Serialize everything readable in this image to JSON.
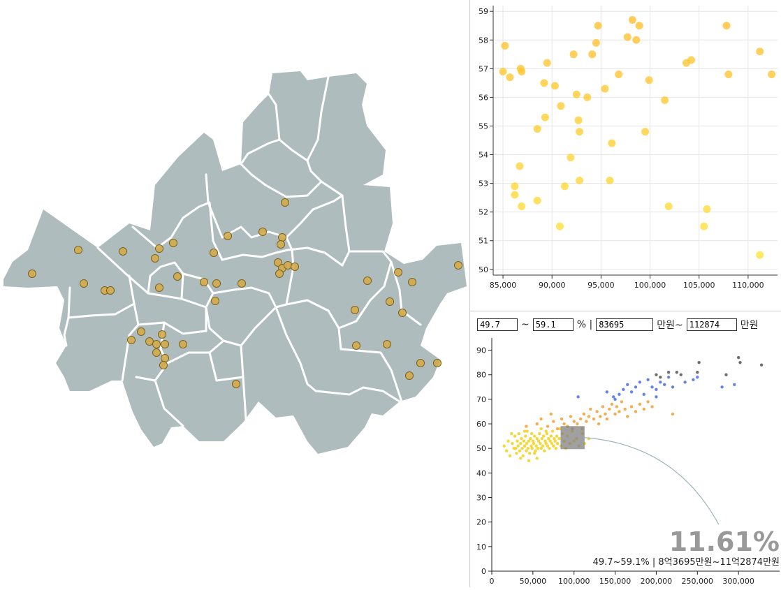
{
  "colors": {
    "district_fill": "#aebcbe",
    "district_stroke": "#ffffff",
    "map_dot": "#d4aa4a",
    "grid": "#e6e6e6",
    "accent_connector": "#9fb4b8"
  },
  "filter": {
    "ratio_min": "49.7",
    "tilde": "~",
    "ratio_max": "59.1",
    "ratio_unit": "% |",
    "price_min": "83695",
    "price_min_unit": "만원~",
    "price_max": "112874",
    "price_max_unit": "만원"
  },
  "chart_data": [
    {
      "type": "scatter",
      "title": "",
      "xlabel": "",
      "ylabel": "",
      "xlim": [
        84000,
        113000
      ],
      "ylim": [
        49.8,
        59.2
      ],
      "xticks": [
        85000,
        90000,
        95000,
        100000,
        105000,
        110000
      ],
      "xtick_labels": [
        "85,000",
        "90,000",
        "95,000",
        "100,000",
        "105,000",
        "110,000"
      ],
      "yticks": [
        50,
        51,
        52,
        53,
        54,
        55,
        56,
        57,
        58,
        59
      ],
      "grid": true,
      "points": [
        [
          85000,
          56.9
        ],
        [
          85200,
          57.8
        ],
        [
          85700,
          56.7
        ],
        [
          86200,
          52.9
        ],
        [
          86200,
          52.6
        ],
        [
          86700,
          53.6
        ],
        [
          86800,
          57.0
        ],
        [
          86900,
          56.9
        ],
        [
          86900,
          52.2
        ],
        [
          88500,
          54.9
        ],
        [
          88500,
          52.4
        ],
        [
          89200,
          56.5
        ],
        [
          89300,
          55.3
        ],
        [
          89500,
          57.2
        ],
        [
          90300,
          56.4
        ],
        [
          90800,
          51.5
        ],
        [
          90900,
          55.7
        ],
        [
          91300,
          52.9
        ],
        [
          91900,
          53.9
        ],
        [
          92200,
          57.5
        ],
        [
          92500,
          56.1
        ],
        [
          92700,
          55.2
        ],
        [
          92800,
          54.8
        ],
        [
          92800,
          53.1
        ],
        [
          93600,
          56.0
        ],
        [
          94100,
          57.5
        ],
        [
          94500,
          57.9
        ],
        [
          94700,
          58.5
        ],
        [
          95400,
          56.3
        ],
        [
          95900,
          53.1
        ],
        [
          96100,
          54.4
        ],
        [
          96800,
          56.8
        ],
        [
          97700,
          58.1
        ],
        [
          98200,
          58.7
        ],
        [
          98600,
          58.0
        ],
        [
          98900,
          58.5
        ],
        [
          99500,
          54.8
        ],
        [
          99900,
          56.6
        ],
        [
          101500,
          55.9
        ],
        [
          101900,
          52.2
        ],
        [
          103700,
          57.2
        ],
        [
          104200,
          57.3
        ],
        [
          105500,
          51.5
        ],
        [
          105800,
          52.1
        ],
        [
          107800,
          58.5
        ],
        [
          108000,
          56.8
        ],
        [
          111200,
          57.6
        ],
        [
          111200,
          50.5
        ],
        [
          112400,
          56.8
        ]
      ]
    },
    {
      "type": "scatter",
      "title": "",
      "xlabel": "",
      "ylabel": "",
      "xlim": [
        0,
        350000
      ],
      "ylim": [
        0,
        95
      ],
      "xticks": [
        0,
        50000,
        100000,
        150000,
        200000,
        250000,
        300000
      ],
      "xtick_labels": [
        "0",
        "50,000",
        "100,000",
        "150,000",
        "200,000",
        "250,000",
        "300,000"
      ],
      "yticks": [
        0,
        10,
        20,
        30,
        40,
        50,
        60,
        70,
        80,
        90
      ],
      "selection": {
        "ratio_range": [
          49.7,
          59.1
        ],
        "price_range": [
          83695,
          112874
        ],
        "share_label": "11.61%",
        "range_label": "49.7~59.1% | 8억3695만원~11억2874만원"
      },
      "series": [
        {
          "color": "#f2d21c",
          "points": [
            [
              15000,
              51
            ],
            [
              18000,
              49
            ],
            [
              20000,
              53
            ],
            [
              22000,
              47
            ],
            [
              25000,
              52
            ],
            [
              27000,
              50
            ],
            [
              28000,
              55
            ],
            [
              30000,
              48
            ],
            [
              31000,
              53
            ],
            [
              32000,
              51
            ],
            [
              33000,
              56
            ],
            [
              34000,
              49
            ],
            [
              35000,
              52
            ],
            [
              36000,
              54
            ],
            [
              37000,
              50
            ],
            [
              38000,
              47
            ],
            [
              39000,
              53
            ],
            [
              40000,
              51
            ],
            [
              41000,
              55
            ],
            [
              42000,
              49
            ],
            [
              42500,
              52
            ],
            [
              43000,
              57
            ],
            [
              44000,
              50
            ],
            [
              45000,
              53
            ],
            [
              46000,
              48
            ],
            [
              47000,
              54
            ],
            [
              48000,
              51
            ],
            [
              48500,
              56
            ],
            [
              49000,
              50
            ],
            [
              50000,
              53
            ],
            [
              51000,
              52
            ],
            [
              52000,
              55
            ],
            [
              53000,
              49
            ],
            [
              54000,
              51
            ],
            [
              55000,
              54
            ],
            [
              56000,
              50
            ],
            [
              57000,
              53
            ],
            [
              58000,
              56
            ],
            [
              59000,
              52
            ],
            [
              60000,
              50
            ],
            [
              61000,
              54
            ],
            [
              62000,
              51
            ],
            [
              63000,
              55
            ],
            [
              64000,
              49
            ],
            [
              65000,
              53
            ],
            [
              66000,
              52
            ],
            [
              67000,
              56
            ],
            [
              68000,
              51
            ],
            [
              69000,
              54
            ],
            [
              70000,
              50
            ],
            [
              71000,
              53
            ],
            [
              72000,
              55
            ],
            [
              73000,
              52
            ],
            [
              74000,
              57
            ],
            [
              75000,
              51
            ],
            [
              76000,
              54
            ],
            [
              77000,
              53
            ],
            [
              78000,
              50
            ],
            [
              79000,
              55
            ],
            [
              80000,
              52
            ],
            [
              82000,
              54
            ],
            [
              84000,
              51
            ],
            [
              86000,
              56
            ],
            [
              88000,
              53
            ],
            [
              90000,
              50
            ],
            [
              92000,
              55
            ],
            [
              95000,
              52
            ],
            [
              98000,
              57
            ],
            [
              100000,
              53
            ],
            [
              103000,
              54
            ],
            [
              106000,
              51
            ],
            [
              110000,
              56
            ],
            [
              113000,
              52
            ],
            [
              118000,
              54
            ],
            [
              35000,
              46
            ],
            [
              45000,
              45
            ],
            [
              55000,
              46
            ],
            [
              24000,
              56
            ],
            [
              40000,
              57
            ],
            [
              60000,
              58
            ],
            [
              29000,
              50
            ],
            [
              52000,
              48
            ],
            [
              66000,
              57
            ],
            [
              83000,
              58
            ]
          ]
        },
        {
          "color": "#f0a030",
          "points": [
            [
              42000,
              59
            ],
            [
              55000,
              60
            ],
            [
              68000,
              59
            ],
            [
              75000,
              61
            ],
            [
              80000,
              58
            ],
            [
              85000,
              62
            ],
            [
              88000,
              60
            ],
            [
              92000,
              59
            ],
            [
              96000,
              63
            ],
            [
              100000,
              61
            ],
            [
              104000,
              60
            ],
            [
              108000,
              62
            ],
            [
              112000,
              64
            ],
            [
              115000,
              61
            ],
            [
              118000,
              63
            ],
            [
              120000,
              66
            ],
            [
              124000,
              62
            ],
            [
              128000,
              65
            ],
            [
              132000,
              63
            ],
            [
              135000,
              67
            ],
            [
              138000,
              64
            ],
            [
              140000,
              62
            ],
            [
              143000,
              66
            ],
            [
              146000,
              68
            ],
            [
              150000,
              64
            ],
            [
              152000,
              67
            ],
            [
              155000,
              65
            ],
            [
              158000,
              69
            ],
            [
              162000,
              66
            ],
            [
              165000,
              63
            ],
            [
              170000,
              67
            ],
            [
              175000,
              65
            ],
            [
              180000,
              68
            ],
            [
              185000,
              66
            ],
            [
              190000,
              69
            ],
            [
              195000,
              67
            ],
            [
              220000,
              64
            ],
            [
              60000,
              62
            ],
            [
              72000,
              64
            ],
            [
              98000,
              58
            ],
            [
              110000,
              58
            ],
            [
              130000,
              60
            ]
          ]
        },
        {
          "color": "#4a70e0",
          "points": [
            [
              140000,
              73
            ],
            [
              148000,
              71
            ],
            [
              155000,
              72
            ],
            [
              160000,
              74
            ],
            [
              165000,
              76
            ],
            [
              170000,
              73
            ],
            [
              175000,
              75
            ],
            [
              180000,
              77
            ],
            [
              185000,
              72
            ],
            [
              190000,
              78
            ],
            [
              195000,
              75
            ],
            [
              200000,
              74
            ],
            [
              205000,
              77
            ],
            [
              210000,
              76
            ],
            [
              215000,
              79
            ],
            [
              220000,
              75
            ],
            [
              245000,
              78
            ],
            [
              250000,
              79
            ],
            [
              280000,
              75
            ],
            [
              295000,
              76
            ],
            [
              105000,
              71
            ],
            [
              150000,
              70
            ],
            [
              200000,
              71
            ],
            [
              235000,
              77
            ]
          ]
        },
        {
          "color": "#555555",
          "points": [
            [
              200000,
              80
            ],
            [
              205000,
              79
            ],
            [
              215000,
              81
            ],
            [
              225000,
              81
            ],
            [
              230000,
              80
            ],
            [
              250000,
              81
            ],
            [
              252000,
              85
            ],
            [
              285000,
              80
            ],
            [
              300000,
              87
            ],
            [
              302000,
              85
            ],
            [
              328000,
              84
            ]
          ]
        }
      ]
    }
  ],
  "map": {
    "dots": [
      [
        46,
        392
      ],
      [
        112,
        358
      ],
      [
        120,
        406
      ],
      [
        150,
        416
      ],
      [
        158,
        416
      ],
      [
        176,
        360
      ],
      [
        228,
        356
      ],
      [
        248,
        348
      ],
      [
        222,
        370
      ],
      [
        254,
        396
      ],
      [
        228,
        412
      ],
      [
        292,
        404
      ],
      [
        306,
        362
      ],
      [
        326,
        338
      ],
      [
        376,
        332
      ],
      [
        404,
        340
      ],
      [
        402,
        350
      ],
      [
        398,
        376
      ],
      [
        404,
        384
      ],
      [
        412,
        380
      ],
      [
        422,
        382
      ],
      [
        400,
        392
      ],
      [
        408,
        290
      ],
      [
        346,
        406
      ],
      [
        310,
        406
      ],
      [
        308,
        431
      ],
      [
        526,
        402
      ],
      [
        570,
        390
      ],
      [
        590,
        404
      ],
      [
        656,
        380
      ],
      [
        508,
        444
      ],
      [
        558,
        432
      ],
      [
        576,
        448
      ],
      [
        510,
        495
      ],
      [
        554,
        493
      ],
      [
        602,
        520
      ],
      [
        586,
        538
      ],
      [
        626,
        520
      ],
      [
        188,
        487
      ],
      [
        202,
        475
      ],
      [
        214,
        489
      ],
      [
        224,
        493
      ],
      [
        232,
        479
      ],
      [
        236,
        493
      ],
      [
        262,
        493
      ],
      [
        224,
        505
      ],
      [
        236,
        513
      ],
      [
        234,
        523
      ],
      [
        338,
        550
      ]
    ]
  }
}
